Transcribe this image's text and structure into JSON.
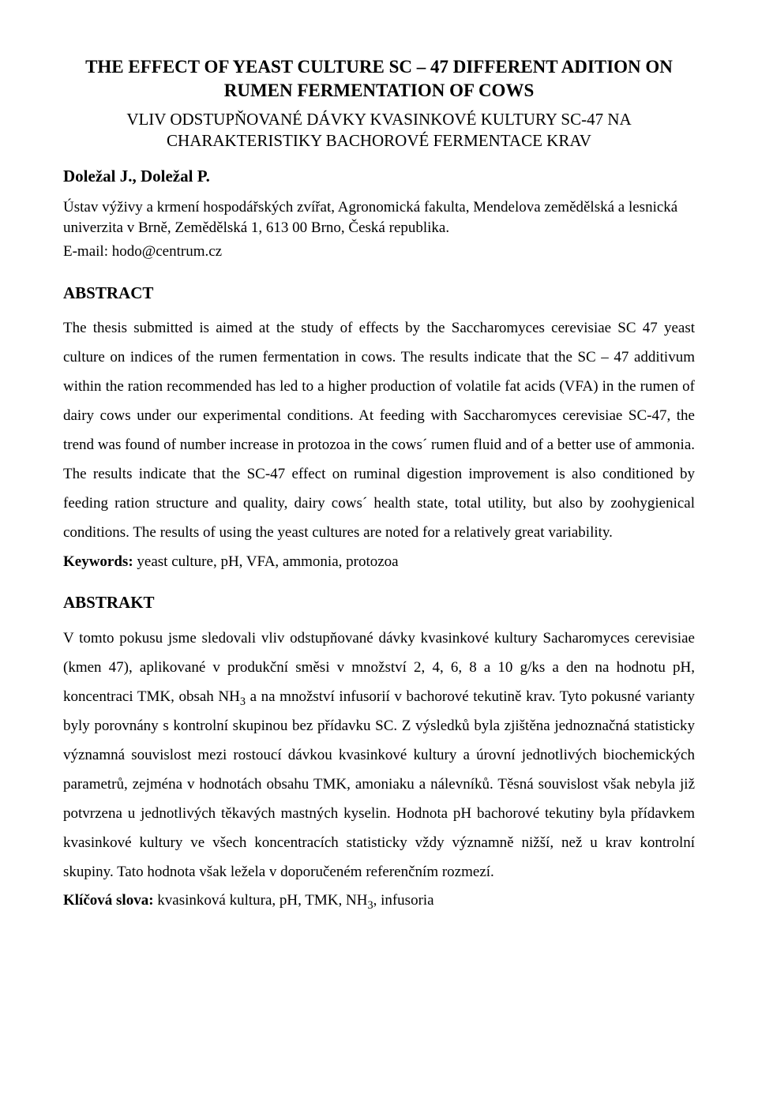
{
  "title_en": "THE EFFECT OF YEAST CULTURE SC – 47 DIFFERENT ADITION ON RUMEN FERMENTATION OF COWS",
  "title_cz": "VLIV ODSTUPŇOVANÉ DÁVKY KVASINKOVÉ KULTURY SC-47 NA CHARAKTERISTIKY BACHOROVÉ FERMENTACE KRAV",
  "authors": "Doležal J., Doležal P.",
  "affiliation": "Ústav výživy a krmení hospodářských zvířat, Agronomická fakulta, Mendelova zemědělská a lesnická univerzita v Brně, Zemědělská 1, 613 00 Brno, Česká republika.",
  "email": "E-mail: hodo@centrum.cz",
  "abstract_heading": "ABSTRACT",
  "abstract_body": "The thesis submitted is aimed at the study of effects by the Saccharomyces cerevisiae SC 47 yeast culture on indices of the rumen fermentation in cows. The results indicate that the SC – 47 additivum within the ration recommended has led to a higher production of volatile fat acids (VFA) in the rumen of dairy cows under our experimental conditions. At feeding with Saccharomyces cerevisiae SC-47, the trend was found of number increase in protozoa in the cows´ rumen fluid and of a better use of ammonia. The results indicate that the SC-47 effect on ruminal digestion improvement is also conditioned by feeding ration structure and quality, dairy cows´ health state, total utility, but also by zoohygienical conditions. The results of using the yeast cultures are noted for a relatively great variability.",
  "keywords_label": "Keywords:",
  "keywords_value": " yeast culture, pH, VFA, ammonia, protozoa",
  "abstrakt_heading": "ABSTRAKT",
  "abstrakt_body_pre": "V tomto pokusu jsme sledovali vliv odstupňované dávky kvasinkové kultury Sacharomyces cerevisiae (kmen 47), aplikované v produkční směsi v množství 2, 4, 6, 8 a 10 g/ks a den na hodnotu pH, koncentraci TMK, obsah NH",
  "abstrakt_body_post": " a na množství infusorií v bachorové tekutině krav. Tyto pokusné varianty byly porovnány s kontrolní skupinou bez přídavku SC.  Z výsledků byla zjištěna jednoznačná statisticky významná souvislost mezi rostoucí dávkou kvasinkové kultury a úrovní jednotlivých biochemických parametrů, zejména v hodnotách obsahu TMK, amoniaku a nálevníků.  Těsná souvislost však nebyla již potvrzena u jednotlivých těkavých mastných kyselin. Hodnota pH bachorové tekutiny byla přídavkem kvasinkové kultury ve všech koncentracích statisticky vždy významně  nižší, než u krav kontrolní skupiny. Tato hodnota však ležela v doporučeném referenčním rozmezí.",
  "klicova_label": "Klíčová slova:",
  "klicova_pre": " kvasinková kultura, pH, TMK, NH",
  "klicova_post": ", infusoria",
  "sub3": "3"
}
